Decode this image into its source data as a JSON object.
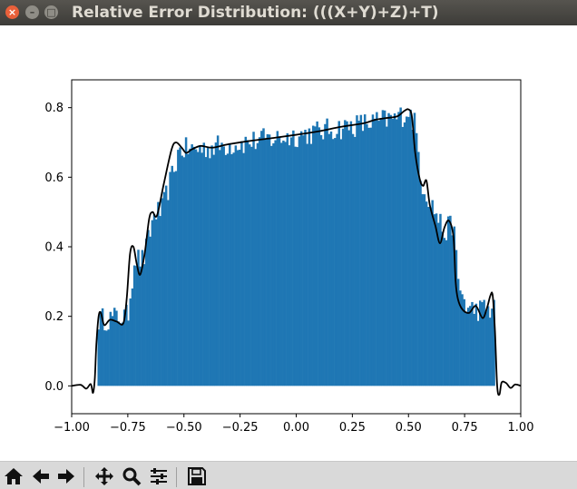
{
  "window": {
    "title": "Relative Error Distribution: (((X+Y)+Z)+T)",
    "close_glyph": "×",
    "min_glyph": "–",
    "max_glyph": "□"
  },
  "toolbar": {
    "items": [
      "home-icon",
      "back-icon",
      "forward-icon",
      "pan-icon",
      "zoom-icon",
      "configure-subplots-icon",
      "save-icon"
    ]
  },
  "chart_data": {
    "type": "bar",
    "title": "",
    "xlabel": "",
    "ylabel": "",
    "xlim": [
      -1.0,
      1.0
    ],
    "ylim": [
      -0.08,
      0.88
    ],
    "xticks": [
      -1.0,
      -0.75,
      -0.5,
      -0.25,
      0.0,
      0.25,
      0.5,
      0.75,
      1.0
    ],
    "xtick_labels": [
      "−1.00",
      "−0.75",
      "−0.50",
      "−0.25",
      "0.00",
      "0.25",
      "0.50",
      "0.75",
      "1.00"
    ],
    "yticks": [
      0.0,
      0.2,
      0.4,
      0.6,
      0.8
    ],
    "ytick_labels": [
      "0.0",
      "0.2",
      "0.4",
      "0.6",
      "0.8"
    ],
    "grid": false,
    "histogram": {
      "color": "#1f77b4",
      "bin_range": [
        -0.885,
        0.885
      ],
      "bins": 200,
      "envelope": [
        [
          -0.885,
          0.19
        ],
        [
          -0.75,
          0.2
        ],
        [
          -0.72,
          0.37
        ],
        [
          -0.68,
          0.36
        ],
        [
          -0.63,
          0.5
        ],
        [
          -0.6,
          0.5
        ],
        [
          -0.52,
          0.68
        ],
        [
          -0.45,
          0.68
        ],
        [
          0.0,
          0.72
        ],
        [
          0.45,
          0.77
        ],
        [
          0.5,
          0.79
        ],
        [
          0.53,
          0.75
        ],
        [
          0.56,
          0.58
        ],
        [
          0.62,
          0.5
        ],
        [
          0.66,
          0.44
        ],
        [
          0.7,
          0.47
        ],
        [
          0.72,
          0.3
        ],
        [
          0.76,
          0.22
        ],
        [
          0.885,
          0.22
        ]
      ],
      "noise_amplitude": 0.035
    },
    "density_curve": {
      "color": "#000000",
      "points": [
        [
          -1.0,
          0.0
        ],
        [
          -0.96,
          0.003
        ],
        [
          -0.935,
          -0.008
        ],
        [
          -0.915,
          0.005
        ],
        [
          -0.905,
          -0.02
        ],
        [
          -0.897,
          0.02
        ],
        [
          -0.89,
          0.12
        ],
        [
          -0.88,
          0.2
        ],
        [
          -0.87,
          0.21
        ],
        [
          -0.855,
          0.175
        ],
        [
          -0.83,
          0.19
        ],
        [
          -0.8,
          0.185
        ],
        [
          -0.77,
          0.18
        ],
        [
          -0.755,
          0.25
        ],
        [
          -0.74,
          0.38
        ],
        [
          -0.725,
          0.4
        ],
        [
          -0.71,
          0.35
        ],
        [
          -0.695,
          0.32
        ],
        [
          -0.675,
          0.38
        ],
        [
          -0.655,
          0.48
        ],
        [
          -0.64,
          0.5
        ],
        [
          -0.62,
          0.49
        ],
        [
          -0.59,
          0.58
        ],
        [
          -0.555,
          0.68
        ],
        [
          -0.535,
          0.7
        ],
        [
          -0.51,
          0.685
        ],
        [
          -0.49,
          0.67
        ],
        [
          -0.465,
          0.68
        ],
        [
          -0.425,
          0.69
        ],
        [
          -0.375,
          0.685
        ],
        [
          -0.3,
          0.695
        ],
        [
          -0.2,
          0.705
        ],
        [
          -0.1,
          0.713
        ],
        [
          0.0,
          0.722
        ],
        [
          0.1,
          0.732
        ],
        [
          0.2,
          0.745
        ],
        [
          0.3,
          0.755
        ],
        [
          0.35,
          0.765
        ],
        [
          0.4,
          0.77
        ],
        [
          0.45,
          0.775
        ],
        [
          0.48,
          0.79
        ],
        [
          0.5,
          0.795
        ],
        [
          0.515,
          0.775
        ],
        [
          0.53,
          0.67
        ],
        [
          0.55,
          0.595
        ],
        [
          0.565,
          0.575
        ],
        [
          0.58,
          0.59
        ],
        [
          0.595,
          0.52
        ],
        [
          0.62,
          0.46
        ],
        [
          0.64,
          0.41
        ],
        [
          0.66,
          0.455
        ],
        [
          0.68,
          0.475
        ],
        [
          0.7,
          0.43
        ],
        [
          0.71,
          0.3
        ],
        [
          0.72,
          0.25
        ],
        [
          0.74,
          0.22
        ],
        [
          0.77,
          0.21
        ],
        [
          0.8,
          0.23
        ],
        [
          0.83,
          0.195
        ],
        [
          0.85,
          0.225
        ],
        [
          0.865,
          0.26
        ],
        [
          0.875,
          0.26
        ],
        [
          0.885,
          0.16
        ],
        [
          0.895,
          0.0
        ],
        [
          0.905,
          -0.025
        ],
        [
          0.915,
          0.01
        ],
        [
          0.935,
          0.008
        ],
        [
          0.955,
          -0.006
        ],
        [
          0.975,
          0.004
        ],
        [
          1.0,
          0.0
        ]
      ]
    }
  }
}
